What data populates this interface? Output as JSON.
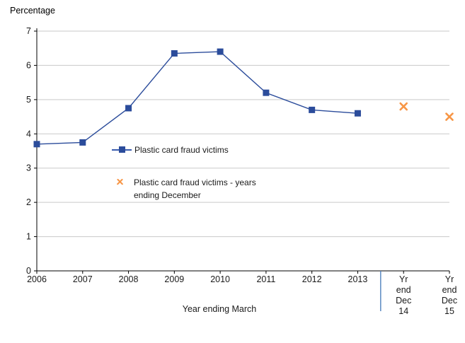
{
  "page_title": "Percentage",
  "xaxis_title": "Year ending March",
  "legend": {
    "items": [
      {
        "label": "Plastic card fraud victims",
        "marker": "square-on-line"
      },
      {
        "label_lines": [
          "Plastic card fraud victims - years",
          "ending December"
        ],
        "marker": "x-cross"
      }
    ]
  },
  "colors": {
    "series_march": "#2b4c9b",
    "series_march_line": "#3a5cae",
    "series_december": "#f79646",
    "divider": "#4f81bd",
    "gridline": "#c9c9c9",
    "axis": "#000000",
    "text": "#1a1a1a"
  },
  "chart_data": {
    "type": "line",
    "title": "Percentage",
    "xlabel": "Year ending March",
    "ylabel": "Percentage",
    "ylim": [
      0,
      7
    ],
    "y_ticks": [
      0,
      1,
      2,
      3,
      4,
      5,
      6,
      7
    ],
    "grid": "horizontal",
    "legend_position": "inside-middle-left",
    "categories": [
      "2006",
      "2007",
      "2008",
      "2009",
      "2010",
      "2011",
      "2012",
      "2013",
      "Yr end Dec 14",
      "Yr end Dec 15"
    ],
    "tick_label_lines": [
      [
        "2006"
      ],
      [
        "2007"
      ],
      [
        "2008"
      ],
      [
        "2009"
      ],
      [
        "2010"
      ],
      [
        "2011"
      ],
      [
        "2012"
      ],
      [
        "2013"
      ],
      [
        "Yr",
        "end",
        "Dec",
        "14"
      ],
      [
        "Yr",
        "end",
        "Dec",
        "15"
      ]
    ],
    "series": [
      {
        "name": "Plastic card fraud victims",
        "style": "line-with-square-markers",
        "color": "#2b4c9b",
        "values": [
          3.7,
          3.75,
          4.75,
          6.35,
          6.4,
          5.2,
          4.7,
          4.6,
          null,
          null
        ]
      },
      {
        "name": "Plastic card fraud victims - years ending December",
        "style": "x-markers-only",
        "color": "#f79646",
        "values": [
          null,
          null,
          null,
          null,
          null,
          null,
          null,
          null,
          4.8,
          4.5
        ]
      }
    ],
    "divider_between": [
      "2013",
      "Yr end Dec 14"
    ]
  }
}
